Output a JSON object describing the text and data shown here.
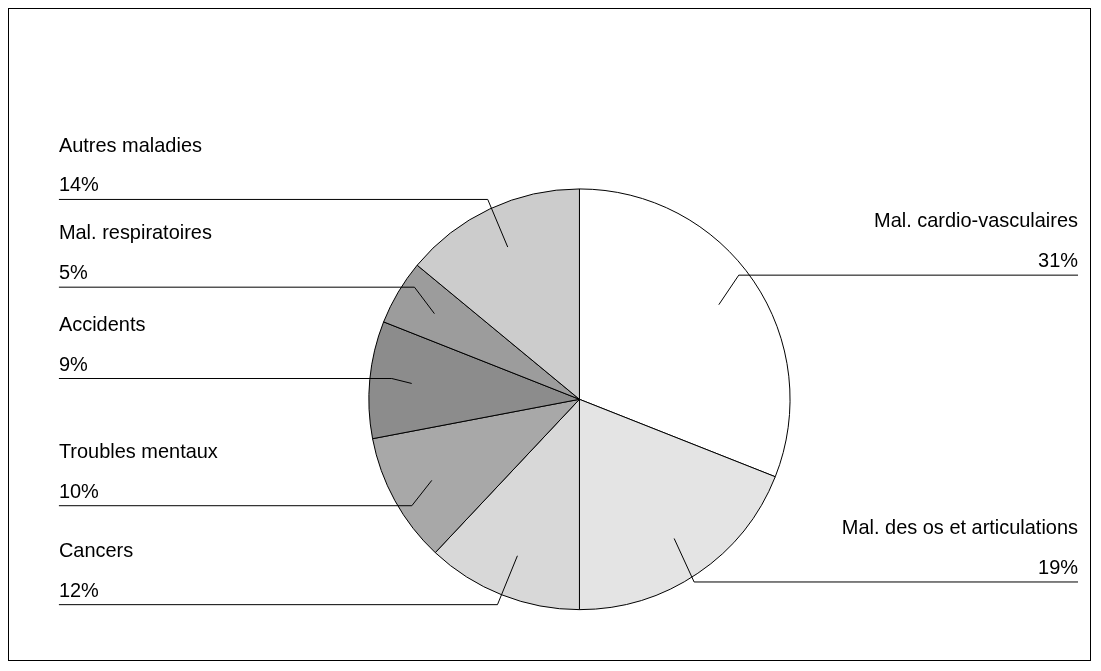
{
  "chart_data": {
    "type": "pie",
    "categories": [
      "Mal. cardio-vasculaires",
      "Mal. des os et articulations",
      "Cancers",
      "Troubles mentaux",
      "Accidents",
      "Mal. respiratoires",
      "Autres maladies"
    ],
    "values": [
      31,
      19,
      12,
      10,
      9,
      5,
      14
    ],
    "value_labels": [
      "31%",
      "19%",
      "12%",
      "10%",
      "9%",
      "5%",
      "14%"
    ],
    "colors": [
      "#ffffff",
      "#e4e4e4",
      "#d8d8d8",
      "#a8a8a8",
      "#8c8c8c",
      "#9c9c9c",
      "#cccccc"
    ]
  }
}
